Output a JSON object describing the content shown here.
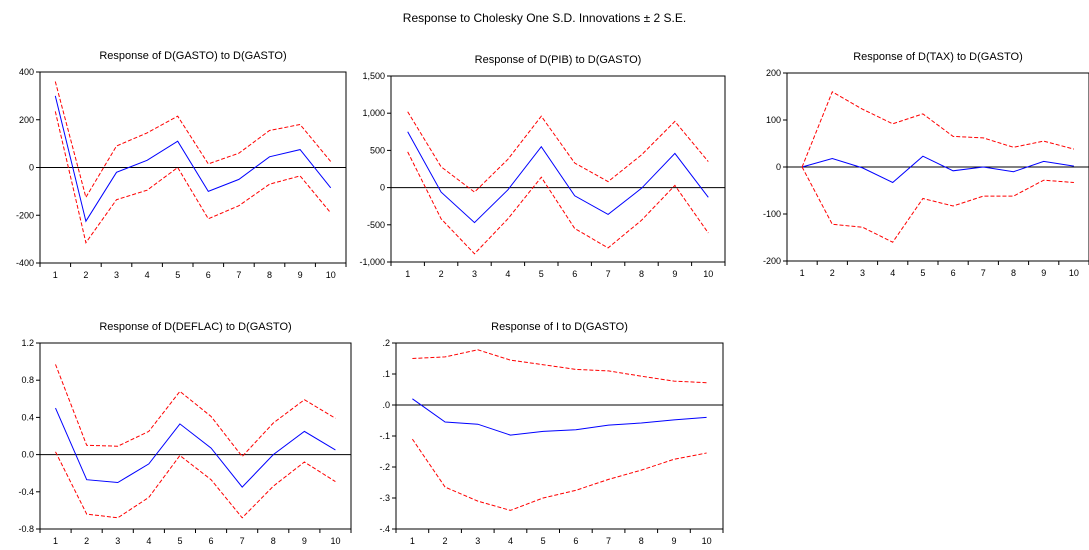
{
  "figure_title": "Response to Cholesky One S.D. Innovations ± 2 S.E.",
  "chart_data": [
    {
      "type": "line",
      "title": "Response of D(GASTO) to D(GASTO)",
      "x": [
        1,
        2,
        3,
        4,
        5,
        6,
        7,
        8,
        9,
        10
      ],
      "ylim": [
        -400,
        400
      ],
      "yticks": [
        "-400",
        "-200",
        "0",
        "200",
        "400"
      ],
      "ytick_values": [
        -400,
        -200,
        0,
        200,
        400
      ],
      "series": [
        {
          "role": "response",
          "color": "#0000ff",
          "style": "solid",
          "values": [
            300,
            -225,
            -20,
            30,
            110,
            -100,
            -50,
            45,
            75,
            -85
          ]
        },
        {
          "role": "upper",
          "color": "#ff0000",
          "style": "dashed",
          "values": [
            360,
            -125,
            90,
            145,
            215,
            15,
            60,
            155,
            180,
            25
          ]
        },
        {
          "role": "lower",
          "color": "#ff0000",
          "style": "dashed",
          "values": [
            235,
            -315,
            -135,
            -95,
            0,
            -215,
            -160,
            -70,
            -35,
            -190
          ]
        }
      ]
    },
    {
      "type": "line",
      "title": "Response of D(PIB) to D(GASTO)",
      "x": [
        1,
        2,
        3,
        4,
        5,
        6,
        7,
        8,
        9,
        10
      ],
      "ylim": [
        -1000,
        1500
      ],
      "yticks": [
        "-1,000",
        "-500",
        "0",
        "500",
        "1,000",
        "1,500"
      ],
      "ytick_values": [
        -1000,
        -500,
        0,
        500,
        1000,
        1500
      ],
      "series": [
        {
          "role": "response",
          "color": "#0000ff",
          "style": "solid",
          "values": [
            750,
            -60,
            -470,
            -30,
            550,
            -110,
            -360,
            -10,
            460,
            -130
          ]
        },
        {
          "role": "upper",
          "color": "#ff0000",
          "style": "dashed",
          "values": [
            1020,
            280,
            -60,
            380,
            960,
            330,
            80,
            440,
            890,
            350
          ]
        },
        {
          "role": "lower",
          "color": "#ff0000",
          "style": "dashed",
          "values": [
            480,
            -420,
            -890,
            -420,
            140,
            -550,
            -810,
            -440,
            30,
            -610
          ]
        }
      ]
    },
    {
      "type": "line",
      "title": "Response of D(TAX) to D(GASTO)",
      "x": [
        1,
        2,
        3,
        4,
        5,
        6,
        7,
        8,
        9,
        10
      ],
      "ylim": [
        -200,
        200
      ],
      "yticks": [
        "-200",
        "-100",
        "0",
        "100",
        "200"
      ],
      "ytick_values": [
        -200,
        -100,
        0,
        100,
        200
      ],
      "series": [
        {
          "role": "response",
          "color": "#0000ff",
          "style": "solid",
          "values": [
            0,
            18,
            -2,
            -33,
            23,
            -8,
            0,
            -10,
            12,
            2
          ]
        },
        {
          "role": "upper",
          "color": "#ff0000",
          "style": "dashed",
          "values": [
            0,
            160,
            123,
            92,
            113,
            65,
            62,
            42,
            55,
            38
          ]
        },
        {
          "role": "lower",
          "color": "#ff0000",
          "style": "dashed",
          "values": [
            0,
            -122,
            -128,
            -160,
            -67,
            -83,
            -62,
            -62,
            -28,
            -33
          ]
        }
      ]
    },
    {
      "type": "line",
      "title": "Response of D(DEFLAC) to D(GASTO)",
      "x": [
        1,
        2,
        3,
        4,
        5,
        6,
        7,
        8,
        9,
        10
      ],
      "ylim": [
        -0.8,
        1.2
      ],
      "yticks": [
        "-0.8",
        "-0.4",
        "0.0",
        "0.4",
        "0.8",
        "1.2"
      ],
      "ytick_values": [
        -0.8,
        -0.4,
        0,
        0.4,
        0.8,
        1.2
      ],
      "series": [
        {
          "role": "response",
          "color": "#0000ff",
          "style": "solid",
          "values": [
            0.5,
            -0.27,
            -0.3,
            -0.1,
            0.33,
            0.07,
            -0.35,
            0.0,
            0.25,
            0.05
          ]
        },
        {
          "role": "upper",
          "color": "#ff0000",
          "style": "dashed",
          "values": [
            0.97,
            0.1,
            0.09,
            0.25,
            0.68,
            0.41,
            -0.02,
            0.34,
            0.59,
            0.39
          ]
        },
        {
          "role": "lower",
          "color": "#ff0000",
          "style": "dashed",
          "values": [
            0.03,
            -0.64,
            -0.68,
            -0.46,
            -0.01,
            -0.27,
            -0.68,
            -0.34,
            -0.08,
            -0.29
          ]
        }
      ]
    },
    {
      "type": "line",
      "title": "Response of I to D(GASTO)",
      "x": [
        1,
        2,
        3,
        4,
        5,
        6,
        7,
        8,
        9,
        10
      ],
      "ylim": [
        -0.4,
        0.2
      ],
      "yticks": [
        "-.4",
        "-.3",
        "-.2",
        "-.1",
        ".0",
        ".1",
        ".2"
      ],
      "ytick_values": [
        -0.4,
        -0.3,
        -0.2,
        -0.1,
        0,
        0.1,
        0.2
      ],
      "series": [
        {
          "role": "response",
          "color": "#0000ff",
          "style": "solid",
          "values": [
            0.02,
            -0.055,
            -0.062,
            -0.097,
            -0.085,
            -0.08,
            -0.065,
            -0.058,
            -0.048,
            -0.04
          ]
        },
        {
          "role": "upper",
          "color": "#ff0000",
          "style": "dashed",
          "values": [
            0.15,
            0.155,
            0.178,
            0.145,
            0.13,
            0.115,
            0.11,
            0.093,
            0.077,
            0.072
          ]
        },
        {
          "role": "lower",
          "color": "#ff0000",
          "style": "dashed",
          "values": [
            -0.11,
            -0.265,
            -0.31,
            -0.34,
            -0.3,
            -0.275,
            -0.24,
            -0.21,
            -0.175,
            -0.155
          ]
        }
      ]
    }
  ]
}
